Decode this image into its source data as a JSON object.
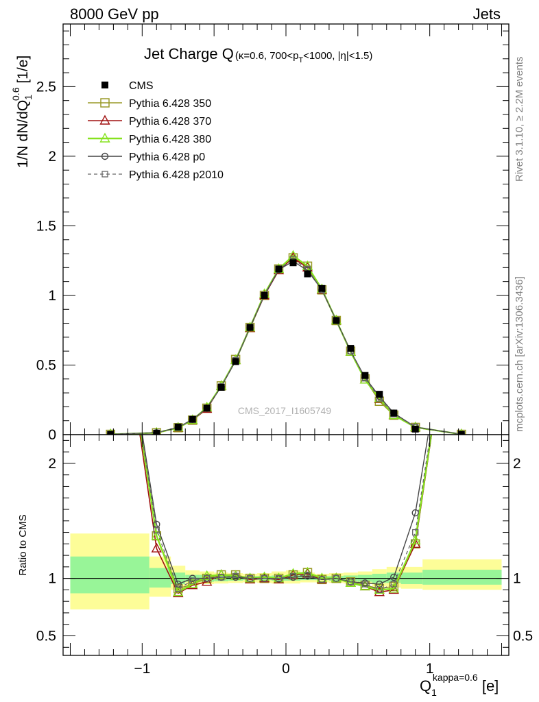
{
  "header": {
    "left": "8000 GeV pp",
    "right": "Jets"
  },
  "side_labels": {
    "rivet": "Rivet 3.1.10, ≥ 2.2M events",
    "mcplots": "mcplots.cern.ch [arXiv:1306.3436]"
  },
  "watermark": "CMS_2017_I1605749",
  "colors": {
    "cms": "#000000",
    "p350": "#9a9a28",
    "p370": "#a01010",
    "p380": "#86e21e",
    "p0": "#444444",
    "p2010": "#666666",
    "band_inner": "#98f598",
    "band_outer": "#fdfd98"
  },
  "chart_data": [
    {
      "type": "line",
      "panel": "main",
      "title_main": "Jet Charge Q",
      "title_sub": "(κ=0.6, 700<p",
      "title_sub_T": "T",
      "title_sub_end": "<1000, |η|<1.5)",
      "ylabel_a": "1/N dN/dQ",
      "ylabel_sub": "1",
      "ylabel_sup": "0.6",
      "ylabel_b": " [1/e]",
      "xlim": [
        -1.55,
        1.55
      ],
      "ylim": [
        0,
        2.95
      ],
      "yticks": [
        0,
        0.5,
        1,
        1.5,
        2,
        2.5
      ],
      "ytick_labels": [
        "0",
        "0.5",
        "1",
        "1.5",
        "2",
        "2.5"
      ],
      "legend_position": "top-left",
      "x": [
        -1.22,
        -0.9,
        -0.75,
        -0.65,
        -0.55,
        -0.45,
        -0.35,
        -0.25,
        -0.15,
        -0.05,
        0.05,
        0.15,
        0.25,
        0.35,
        0.45,
        0.55,
        0.65,
        0.75,
        0.9,
        1.22
      ],
      "series": [
        {
          "name": "CMS",
          "key": "cms",
          "marker": "filled-square",
          "values": [
            0.0015,
            0.0095,
            0.055,
            0.11,
            0.19,
            0.34,
            0.525,
            0.77,
            1.0,
            1.19,
            1.235,
            1.155,
            1.05,
            0.82,
            0.62,
            0.425,
            0.29,
            0.155,
            0.04,
            0.0015
          ]
        },
        {
          "name": "Pythia 6.428 350",
          "key": "p350",
          "marker": "open-square",
          "values": [
            0.0022,
            0.013,
            0.05,
            0.104,
            0.19,
            0.35,
            0.54,
            0.77,
            1.0,
            1.19,
            1.27,
            1.21,
            1.04,
            0.82,
            0.6,
            0.4,
            0.24,
            0.14,
            0.052,
            0.0022
          ]
        },
        {
          "name": "Pythia 6.428 370",
          "key": "p370",
          "marker": "open-triangle",
          "values": [
            0.0022,
            0.012,
            0.048,
            0.103,
            0.185,
            0.35,
            0.535,
            0.765,
            1.0,
            1.18,
            1.27,
            1.2,
            1.04,
            0.82,
            0.595,
            0.395,
            0.255,
            0.14,
            0.052,
            0.0022
          ]
        },
        {
          "name": "Pythia 6.428 380",
          "key": "p380",
          "marker": "open-triangle",
          "values": [
            0.0024,
            0.013,
            0.05,
            0.105,
            0.195,
            0.35,
            0.535,
            0.77,
            1.01,
            1.19,
            1.285,
            1.21,
            1.045,
            0.82,
            0.595,
            0.395,
            0.26,
            0.14,
            0.053,
            0.0024
          ]
        },
        {
          "name": "Pythia 6.428 p0",
          "key": "p0",
          "marker": "open-circle",
          "values": [
            0.0025,
            0.014,
            0.052,
            0.11,
            0.19,
            0.345,
            0.53,
            0.77,
            1.0,
            1.185,
            1.245,
            1.18,
            1.04,
            0.82,
            0.6,
            0.41,
            0.275,
            0.155,
            0.055,
            0.0025
          ]
        },
        {
          "name": "Pythia 6.428 p2010",
          "key": "p2010",
          "marker": "open-square-small",
          "values": [
            0.0024,
            0.0135,
            0.05,
            0.108,
            0.19,
            0.345,
            0.535,
            0.77,
            1.005,
            1.19,
            1.26,
            1.19,
            1.04,
            0.82,
            0.6,
            0.405,
            0.26,
            0.148,
            0.054,
            0.0024
          ]
        }
      ]
    },
    {
      "type": "line",
      "panel": "ratio",
      "ylabel": "Ratio to CMS",
      "xlabel_main": "Q",
      "xlabel_sub": "1",
      "xlabel_sup": "kappa=0.6",
      "xlabel_unit": " [e]",
      "xlim": [
        -1.55,
        1.55
      ],
      "ylim": [
        0.33,
        2.25
      ],
      "yticks": [
        0.5,
        1,
        2
      ],
      "ytick_labels": [
        "0.5",
        "1",
        "2"
      ],
      "xticks": [
        -1,
        0,
        1
      ],
      "xtick_labels": [
        "−1",
        "0",
        "1"
      ],
      "bands": [
        {
          "x0": -1.5,
          "x1": -0.95,
          "inner": [
            0.87,
            1.19
          ],
          "outer": [
            0.73,
            1.39
          ]
        },
        {
          "x0": -0.95,
          "x1": -0.8,
          "inner": [
            0.92,
            1.09
          ],
          "outer": [
            0.84,
            1.19
          ]
        },
        {
          "x0": -0.8,
          "x1": -0.7,
          "inner": [
            0.95,
            1.05
          ],
          "outer": [
            0.9,
            1.11
          ]
        },
        {
          "x0": -0.7,
          "x1": -0.6,
          "inner": [
            0.97,
            1.03
          ],
          "outer": [
            0.94,
            1.07
          ]
        },
        {
          "x0": -0.6,
          "x1": -0.5,
          "inner": [
            0.97,
            1.03
          ],
          "outer": [
            0.95,
            1.06
          ]
        },
        {
          "x0": -0.5,
          "x1": -0.4,
          "inner": [
            0.975,
            1.025
          ],
          "outer": [
            0.955,
            1.05
          ]
        },
        {
          "x0": -0.4,
          "x1": -0.3,
          "inner": [
            0.98,
            1.02
          ],
          "outer": [
            0.96,
            1.045
          ]
        },
        {
          "x0": -0.3,
          "x1": -0.2,
          "inner": [
            0.985,
            1.02
          ],
          "outer": [
            0.965,
            1.04
          ]
        },
        {
          "x0": -0.2,
          "x1": -0.1,
          "inner": [
            0.985,
            1.02
          ],
          "outer": [
            0.96,
            1.045
          ]
        },
        {
          "x0": -0.1,
          "x1": 0.0,
          "inner": [
            0.98,
            1.025
          ],
          "outer": [
            0.955,
            1.06
          ]
        },
        {
          "x0": 0.0,
          "x1": 0.1,
          "inner": [
            0.98,
            1.03
          ],
          "outer": [
            0.955,
            1.07
          ]
        },
        {
          "x0": 0.1,
          "x1": 0.2,
          "inner": [
            0.985,
            1.02
          ],
          "outer": [
            0.965,
            1.05
          ]
        },
        {
          "x0": 0.2,
          "x1": 0.3,
          "inner": [
            0.985,
            1.02
          ],
          "outer": [
            0.965,
            1.04
          ]
        },
        {
          "x0": 0.3,
          "x1": 0.4,
          "inner": [
            0.98,
            1.02
          ],
          "outer": [
            0.96,
            1.045
          ]
        },
        {
          "x0": 0.4,
          "x1": 0.5,
          "inner": [
            0.975,
            1.025
          ],
          "outer": [
            0.955,
            1.05
          ]
        },
        {
          "x0": 0.5,
          "x1": 0.6,
          "inner": [
            0.97,
            1.03
          ],
          "outer": [
            0.95,
            1.06
          ]
        },
        {
          "x0": 0.6,
          "x1": 0.7,
          "inner": [
            0.96,
            1.04
          ],
          "outer": [
            0.93,
            1.08
          ]
        },
        {
          "x0": 0.7,
          "x1": 0.8,
          "inner": [
            0.96,
            1.05
          ],
          "outer": [
            0.92,
            1.1
          ]
        },
        {
          "x0": 0.8,
          "x1": 0.95,
          "inner": [
            0.95,
            1.05
          ],
          "outer": [
            0.91,
            1.1
          ]
        },
        {
          "x0": 0.95,
          "x1": 1.5,
          "inner": [
            0.945,
            1.075
          ],
          "outer": [
            0.9,
            1.165
          ]
        }
      ],
      "x": [
        -1.22,
        -0.9,
        -0.75,
        -0.65,
        -0.55,
        -0.45,
        -0.35,
        -0.25,
        -0.15,
        -0.05,
        0.05,
        0.15,
        0.25,
        0.35,
        0.45,
        0.55,
        0.65,
        0.75,
        0.9,
        1.22
      ],
      "series": [
        {
          "name": "Pythia 6.428 350",
          "key": "p350",
          "marker": "open-square",
          "values": [
            4.0,
            1.37,
            0.91,
            0.95,
            1.0,
            1.03,
            1.03,
            1.0,
            1.0,
            1.0,
            1.03,
            1.05,
            0.99,
            1.0,
            0.97,
            0.94,
            0.91,
            0.93,
            1.3,
            4.0
          ]
        },
        {
          "name": "Pythia 6.428 370",
          "key": "p370",
          "marker": "open-triangle",
          "values": [
            4.0,
            1.26,
            0.87,
            0.94,
            0.97,
            1.03,
            1.02,
            0.99,
            1.0,
            0.99,
            1.03,
            1.04,
            0.99,
            1.0,
            0.96,
            0.93,
            0.88,
            0.9,
            1.3,
            4.0
          ]
        },
        {
          "name": "Pythia 6.428 380",
          "key": "p380",
          "marker": "open-triangle",
          "values": [
            4.0,
            1.37,
            0.88,
            0.95,
            1.02,
            1.03,
            1.02,
            1.0,
            1.01,
            1.0,
            1.04,
            1.05,
            1.0,
            1.0,
            0.96,
            0.93,
            0.9,
            0.91,
            1.33,
            4.0
          ]
        },
        {
          "name": "Pythia 6.428 p0",
          "key": "p0",
          "marker": "open-circle",
          "values": [
            4.0,
            1.47,
            0.95,
            1.0,
            1.0,
            1.01,
            1.01,
            1.0,
            1.0,
            0.995,
            1.01,
            1.02,
            0.99,
            1.0,
            0.97,
            0.96,
            0.95,
            1.01,
            1.57,
            4.0
          ]
        },
        {
          "name": "Pythia 6.428 p2010",
          "key": "p2010",
          "marker": "open-square-small",
          "values": [
            4.0,
            1.42,
            0.91,
            0.98,
            1.0,
            1.01,
            1.02,
            1.0,
            1.0,
            1.0,
            1.02,
            1.03,
            0.99,
            1.0,
            0.97,
            0.95,
            0.9,
            0.95,
            1.4,
            4.0
          ]
        }
      ]
    }
  ]
}
